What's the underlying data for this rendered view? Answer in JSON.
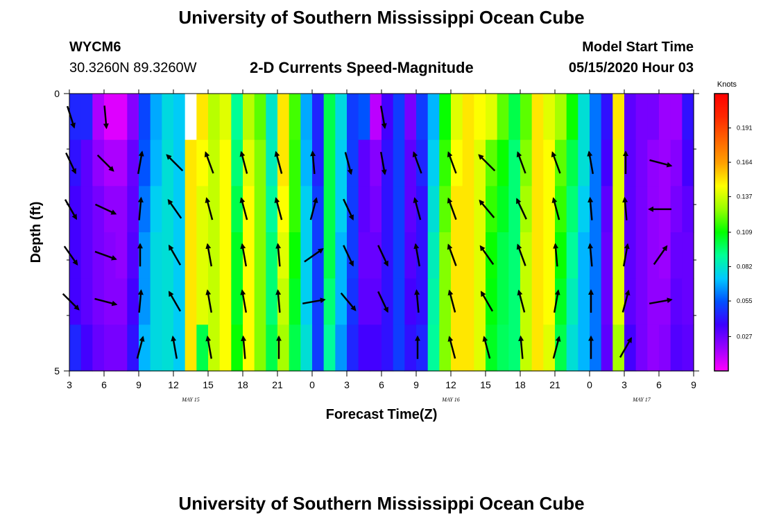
{
  "header": {
    "title": "University of Southern Mississippi Ocean Cube",
    "station_id": "WYCM6",
    "station_coords": "30.3260N 89.3260W",
    "plot_title": "2-D Currents Speed-Magnitude",
    "model_start_label": "Model Start Time",
    "model_start_value": "05/15/2020 Hour 03"
  },
  "footer": {
    "title": "University of Southern Mississippi Ocean Cube"
  },
  "chart_data": {
    "type": "heatmap",
    "title": "2-D Currents Speed-Magnitude",
    "xlabel": "Forecast Time(Z)",
    "ylabel": "Depth (ft)",
    "x_tick_labels": [
      "3",
      "6",
      "9",
      "12",
      "15",
      "18",
      "21",
      "0",
      "3",
      "6",
      "9",
      "12",
      "15",
      "18",
      "21",
      "0",
      "3",
      "6",
      "9"
    ],
    "x_date_labels": [
      "MAY 15",
      "MAY 16",
      "MAY 17"
    ],
    "y_tick_labels": [
      "0",
      "5"
    ],
    "ylim": [
      0,
      5
    ],
    "colorbar": {
      "unit": "Knots",
      "tick_labels": [
        "0.191",
        "0.164",
        "0.137",
        "0.109",
        "0.082",
        "0.055",
        "0.027"
      ],
      "tick_values": [
        0.191,
        0.164,
        0.137,
        0.109,
        0.082,
        0.055,
        0.027
      ],
      "range": [
        0,
        0.218
      ],
      "colors": [
        "#ff00ff",
        "#9a00ff",
        "#3c00ff",
        "#0050ff",
        "#00c8ff",
        "#00ff96",
        "#00ff00",
        "#96ff00",
        "#ffff00",
        "#ffa000",
        "#ff6400",
        "#ff2800",
        "#ff0000"
      ]
    },
    "x_hours": [
      3,
      4,
      5,
      6,
      7,
      8,
      9,
      10,
      11,
      12,
      13,
      14,
      15,
      16,
      17,
      18,
      19,
      20,
      21,
      22,
      23,
      24,
      25,
      26,
      27,
      28,
      29,
      30,
      31,
      32,
      33,
      34,
      35,
      36,
      37,
      38,
      39,
      40,
      41,
      42,
      43,
      44,
      45,
      46,
      47,
      48,
      49,
      50,
      51,
      52,
      53,
      54,
      55,
      56
    ],
    "speed_knots": [
      [
        0.045,
        0.045,
        0.015,
        0.006,
        0.006,
        0.022,
        0.052,
        0.068,
        0.078,
        0.074,
        0.12,
        0.15,
        0.133,
        0.14,
        0.091,
        0.133,
        0.12,
        0.082,
        0.15,
        0.117,
        0.068,
        0.045,
        0.1,
        0.078,
        0.05,
        0.055,
        0.012,
        0.035,
        0.05,
        0.025,
        0.05,
        0.07,
        0.11,
        0.14,
        0.15,
        0.145,
        0.14,
        0.12,
        0.1,
        0.12,
        0.15,
        0.14,
        0.13,
        0.11,
        0.08,
        0.06,
        0.04,
        0.15,
        0.03,
        0.025,
        0.025,
        0.018,
        0.018,
        0.04
      ],
      [
        0.04,
        0.03,
        0.02,
        0.015,
        0.015,
        0.028,
        0.055,
        0.07,
        0.08,
        0.074,
        0.15,
        0.145,
        0.135,
        0.145,
        0.095,
        0.14,
        0.125,
        0.085,
        0.15,
        0.115,
        0.07,
        0.045,
        0.1,
        0.075,
        0.05,
        0.03,
        0.022,
        0.04,
        0.05,
        0.03,
        0.045,
        0.075,
        0.115,
        0.145,
        0.15,
        0.14,
        0.12,
        0.11,
        0.095,
        0.125,
        0.15,
        0.145,
        0.12,
        0.1,
        0.08,
        0.06,
        0.035,
        0.14,
        0.03,
        0.025,
        0.02,
        0.018,
        0.022,
        0.035
      ],
      [
        0.035,
        0.03,
        0.025,
        0.02,
        0.02,
        0.03,
        0.06,
        0.075,
        0.08,
        0.074,
        0.15,
        0.14,
        0.135,
        0.145,
        0.1,
        0.145,
        0.125,
        0.09,
        0.145,
        0.115,
        0.075,
        0.05,
        0.1,
        0.075,
        0.05,
        0.03,
        0.025,
        0.04,
        0.05,
        0.03,
        0.04,
        0.08,
        0.12,
        0.15,
        0.15,
        0.14,
        0.115,
        0.105,
        0.095,
        0.13,
        0.15,
        0.145,
        0.115,
        0.095,
        0.075,
        0.06,
        0.03,
        0.14,
        0.03,
        0.025,
        0.02,
        0.018,
        0.025,
        0.03
      ],
      [
        0.035,
        0.03,
        0.025,
        0.022,
        0.02,
        0.032,
        0.065,
        0.078,
        0.08,
        0.074,
        0.15,
        0.14,
        0.135,
        0.145,
        0.105,
        0.145,
        0.125,
        0.095,
        0.14,
        0.11,
        0.075,
        0.05,
        0.1,
        0.07,
        0.05,
        0.028,
        0.028,
        0.04,
        0.05,
        0.032,
        0.04,
        0.085,
        0.125,
        0.15,
        0.15,
        0.14,
        0.11,
        0.1,
        0.095,
        0.135,
        0.15,
        0.145,
        0.11,
        0.09,
        0.07,
        0.06,
        0.028,
        0.14,
        0.03,
        0.025,
        0.02,
        0.018,
        0.028,
        0.028
      ],
      [
        0.035,
        0.03,
        0.025,
        0.022,
        0.022,
        0.035,
        0.065,
        0.078,
        0.08,
        0.074,
        0.15,
        0.14,
        0.135,
        0.145,
        0.105,
        0.145,
        0.125,
        0.095,
        0.135,
        0.105,
        0.075,
        0.05,
        0.095,
        0.07,
        0.048,
        0.03,
        0.03,
        0.04,
        0.05,
        0.035,
        0.04,
        0.088,
        0.125,
        0.15,
        0.15,
        0.14,
        0.108,
        0.1,
        0.095,
        0.135,
        0.15,
        0.145,
        0.105,
        0.085,
        0.07,
        0.06,
        0.028,
        0.14,
        0.03,
        0.025,
        0.02,
        0.02,
        0.03,
        0.028
      ],
      [
        0.045,
        0.035,
        0.028,
        0.025,
        0.025,
        0.04,
        0.07,
        0.078,
        0.08,
        0.074,
        0.15,
        0.1,
        0.135,
        0.145,
        0.11,
        0.145,
        0.125,
        0.1,
        0.13,
        0.1,
        0.08,
        0.05,
        0.09,
        0.065,
        0.045,
        0.035,
        0.035,
        0.04,
        0.05,
        0.04,
        0.045,
        0.09,
        0.125,
        0.15,
        0.15,
        0.14,
        0.105,
        0.098,
        0.095,
        0.135,
        0.15,
        0.14,
        0.1,
        0.08,
        0.07,
        0.06,
        0.03,
        0.13,
        0.035,
        0.025,
        0.02,
        0.022,
        0.032,
        0.03
      ]
    ],
    "white_cell": {
      "col": 10,
      "row": 0
    },
    "vector_levels": 6,
    "vector_hours": [
      3,
      6,
      9,
      12,
      15,
      18,
      21,
      24,
      27,
      30,
      33,
      36,
      39,
      42,
      45,
      48,
      51,
      54
    ],
    "vector_angles_deg": [
      [
        162,
        175,
        null,
        null,
        null,
        null,
        null,
        null,
        null,
        170,
        null,
        null,
        null,
        null,
        null,
        null,
        null,
        null
      ],
      [
        155,
        135,
        10,
        -45,
        -20,
        -15,
        -15,
        -5,
        165,
        170,
        -20,
        -20,
        -45,
        -20,
        -20,
        -10,
        0,
        105
      ],
      [
        150,
        115,
        5,
        -35,
        -15,
        -15,
        -15,
        15,
        155,
        null,
        -15,
        -20,
        -40,
        -25,
        -15,
        -5,
        -5,
        -90
      ],
      [
        145,
        110,
        0,
        -30,
        -10,
        -10,
        -5,
        55,
        155,
        155,
        -10,
        -20,
        -35,
        -20,
        -5,
        -5,
        10,
        35
      ],
      [
        135,
        105,
        5,
        -30,
        -10,
        -10,
        -5,
        80,
        140,
        155,
        -5,
        -15,
        -30,
        -15,
        10,
        0,
        15,
        80
      ],
      [
        null,
        null,
        15,
        -10,
        -10,
        -5,
        0,
        null,
        null,
        null,
        0,
        -15,
        -15,
        -5,
        15,
        0,
        30,
        null
      ]
    ]
  }
}
